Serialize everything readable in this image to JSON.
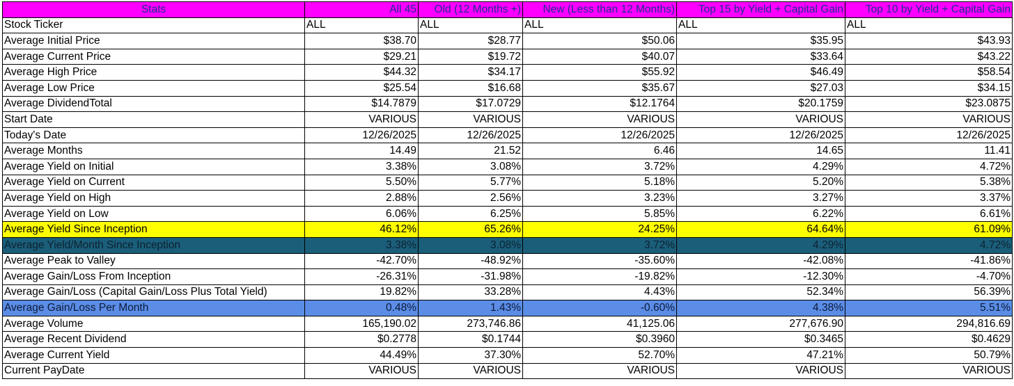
{
  "colors": {
    "header_bg": "#ff00ff",
    "header_text": "#1f2f8f",
    "highlight_yellow": "#ffff00",
    "highlight_teal": "#1b5e7a",
    "highlight_blue": "#5b8de6"
  },
  "headers": [
    "Stats",
    "All 45",
    "Old (12 Months +)",
    "New (Less than 12 Months)",
    "Top 15 by Yield + Capital Gain",
    "Top 10 by Yield + Capital Gain"
  ],
  "rows": [
    {
      "label": "Stock Ticker",
      "values": [
        "ALL",
        "ALL",
        "ALL",
        "ALL",
        "ALL"
      ]
    },
    {
      "label": "Average Initial Price",
      "values": [
        "$38.70",
        "$28.77",
        "$50.06",
        "$35.95",
        "$43.93"
      ]
    },
    {
      "label": "Average Current Price",
      "values": [
        "$29.21",
        "$19.72",
        "$40.07",
        "$33.64",
        "$43.22"
      ]
    },
    {
      "label": "Average High Price",
      "values": [
        "$44.32",
        "$34.17",
        "$55.92",
        "$46.49",
        "$58.54"
      ]
    },
    {
      "label": "Average Low Price",
      "values": [
        "$25.54",
        "$16.68",
        "$35.67",
        "$27.03",
        "$34.15"
      ]
    },
    {
      "label": "Average DividendTotal",
      "values": [
        "$14.7879",
        "$17.0729",
        "$12.1764",
        "$20.1759",
        "$23.0875"
      ]
    },
    {
      "label": "Start Date",
      "values": [
        "VARIOUS",
        "VARIOUS",
        "VARIOUS",
        "VARIOUS",
        "VARIOUS"
      ]
    },
    {
      "label": "Today's Date",
      "values": [
        "12/26/2025",
        "12/26/2025",
        "12/26/2025",
        "12/26/2025",
        "12/26/2025"
      ]
    },
    {
      "label": "Average Months",
      "values": [
        "14.49",
        "21.52",
        "6.46",
        "14.65",
        "11.41"
      ]
    },
    {
      "label": "Average Yield on Initial",
      "values": [
        "3.38%",
        "3.08%",
        "3.72%",
        "4.29%",
        "4.72%"
      ]
    },
    {
      "label": "Average Yield on Current",
      "values": [
        "5.50%",
        "5.77%",
        "5.18%",
        "5.20%",
        "5.38%"
      ]
    },
    {
      "label": "Average Yield on High",
      "values": [
        "2.88%",
        "2.56%",
        "3.23%",
        "3.27%",
        "3.37%"
      ]
    },
    {
      "label": "Average Yield on Low",
      "values": [
        "6.06%",
        "6.25%",
        "5.85%",
        "6.22%",
        "6.61%"
      ]
    },
    {
      "label": "Average Yield Since Inception",
      "values": [
        "46.12%",
        "65.26%",
        "24.25%",
        "64.64%",
        "61.09%"
      ]
    },
    {
      "label": "Average Yield/Month Since Inception",
      "values": [
        "3.38%",
        "3.08%",
        "3.72%",
        "4.29%",
        "4.72%"
      ]
    },
    {
      "label": "Average Peak to Valley",
      "values": [
        "-42.70%",
        "-48.92%",
        "-35.60%",
        "-42.08%",
        "-41.86%"
      ]
    },
    {
      "label": "Average Gain/Loss From Inception",
      "values": [
        "-26.31%",
        "-31.98%",
        "-19.82%",
        "-12.30%",
        "-4.70%"
      ]
    },
    {
      "label": "Average Gain/Loss (Capital Gain/Loss Plus Total Yield)",
      "values": [
        "19.82%",
        "33.28%",
        "4.43%",
        "52.34%",
        "56.39%"
      ]
    },
    {
      "label": "Average Gain/Loss Per Month",
      "values": [
        "0.48%",
        "1.43%",
        "-0.60%",
        "4.38%",
        "5.51%"
      ]
    },
    {
      "label": "Average Volume",
      "values": [
        "165,190.02",
        "273,746.86",
        "41,125.06",
        "277,676.90",
        "294,816.69"
      ]
    },
    {
      "label": "Average Recent Dividend",
      "values": [
        "$0.2778",
        "$0.1744",
        "$0.3960",
        "$0.3465",
        "$0.4629"
      ]
    },
    {
      "label": "Average Current Yield",
      "values": [
        "44.49%",
        "37.30%",
        "52.70%",
        "47.21%",
        "50.79%"
      ]
    },
    {
      "label": "Current PayDate",
      "values": [
        "VARIOUS",
        "VARIOUS",
        "VARIOUS",
        "VARIOUS",
        "VARIOUS"
      ]
    }
  ]
}
